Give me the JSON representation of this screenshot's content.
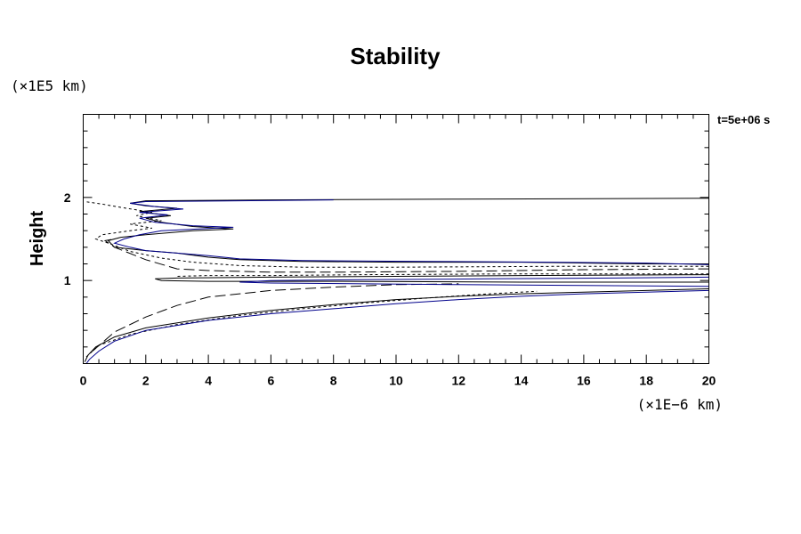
{
  "chart_data": {
    "type": "line",
    "title": "Stability",
    "ylabel": "Height",
    "xlabel": "",
    "x_unit": "(×1E−6 km)",
    "y_unit": "(×1E5 km)",
    "annotation": "t=5e+06 s",
    "xlim": [
      0,
      20
    ],
    "ylim": [
      0,
      3
    ],
    "x_ticks": [
      0,
      2,
      4,
      6,
      8,
      10,
      12,
      14,
      16,
      18,
      20
    ],
    "y_ticks": [
      1,
      2
    ],
    "x_minor_step": 0.5,
    "y_minor_step": 0.2,
    "grid": false,
    "series": [
      {
        "color": "#000000",
        "dash": "solid",
        "points": [
          [
            0.05,
            0.02
          ],
          [
            0.15,
            0.1
          ],
          [
            0.4,
            0.2
          ],
          [
            1,
            0.32
          ],
          [
            2,
            0.43
          ],
          [
            4,
            0.55
          ],
          [
            6,
            0.64
          ],
          [
            8,
            0.71
          ],
          [
            10,
            0.77
          ],
          [
            12,
            0.81
          ],
          [
            14,
            0.84
          ],
          [
            16,
            0.86
          ],
          [
            18,
            0.88
          ],
          [
            20,
            0.9
          ]
        ]
      },
      {
        "color": "#000000",
        "dash": "short",
        "points": [
          [
            0.1,
            0.08
          ],
          [
            0.5,
            0.22
          ],
          [
            1.5,
            0.35
          ],
          [
            3,
            0.47
          ],
          [
            5,
            0.58
          ],
          [
            7,
            0.66
          ],
          [
            9,
            0.73
          ],
          [
            11,
            0.79
          ],
          [
            13,
            0.84
          ],
          [
            14.5,
            0.87
          ]
        ]
      },
      {
        "color": "#000000",
        "dash": "long",
        "points": [
          [
            0.3,
            0.15
          ],
          [
            1,
            0.38
          ],
          [
            2,
            0.56
          ],
          [
            3,
            0.7
          ],
          [
            4,
            0.8
          ],
          [
            6,
            0.88
          ],
          [
            8,
            0.92
          ],
          [
            10,
            0.95
          ],
          [
            12,
            0.96
          ]
        ]
      },
      {
        "color": "#00008b",
        "dash": "solid",
        "points": [
          [
            0.1,
            0
          ],
          [
            0.2,
            0.05
          ],
          [
            0.5,
            0.15
          ],
          [
            1,
            0.27
          ],
          [
            2,
            0.4
          ],
          [
            4,
            0.52
          ],
          [
            6,
            0.6
          ],
          [
            8,
            0.66
          ],
          [
            10,
            0.72
          ],
          [
            12,
            0.77
          ],
          [
            14,
            0.81
          ],
          [
            16,
            0.84
          ],
          [
            18,
            0.86
          ],
          [
            20,
            0.88
          ]
        ]
      },
      {
        "color": "#000000",
        "dash": "solid",
        "points": [
          [
            20,
            0.98
          ],
          [
            14,
            0.98
          ],
          [
            8,
            0.99
          ],
          [
            4,
            0.99
          ],
          [
            2.5,
            1.0
          ],
          [
            2.3,
            1.02
          ],
          [
            3,
            1.03
          ],
          [
            6,
            1.04
          ],
          [
            10,
            1.05
          ],
          [
            14,
            1.06
          ],
          [
            20,
            1.07
          ]
        ]
      },
      {
        "color": "#000000",
        "dash": "short",
        "points": [
          [
            20,
            1.08
          ],
          [
            14,
            1.08
          ],
          [
            9,
            1.07
          ],
          [
            6,
            1.06
          ],
          [
            4,
            1.06
          ],
          [
            3,
            1.05
          ]
        ]
      },
      {
        "color": "#000000",
        "dash": "long",
        "points": [
          [
            20,
            1.14
          ],
          [
            16,
            1.13
          ],
          [
            12,
            1.11
          ],
          [
            8,
            1.1
          ],
          [
            6,
            1.1
          ],
          [
            5,
            1.11
          ],
          [
            4,
            1.12
          ],
          [
            3,
            1.14
          ],
          [
            2,
            1.25
          ],
          [
            1,
            1.4
          ],
          [
            0.7,
            1.48
          ],
          [
            1,
            1.5
          ]
        ]
      },
      {
        "color": "#000000",
        "dash": "short",
        "points": [
          [
            20,
            1.17
          ],
          [
            15,
            1.17
          ],
          [
            10,
            1.16
          ],
          [
            7,
            1.16
          ],
          [
            5,
            1.18
          ],
          [
            3.5,
            1.22
          ],
          [
            2.5,
            1.27
          ],
          [
            1.5,
            1.35
          ],
          [
            0.8,
            1.45
          ],
          [
            0.4,
            1.5
          ],
          [
            0.6,
            1.55
          ],
          [
            1.5,
            1.6
          ],
          [
            2.2,
            1.63
          ],
          [
            1.5,
            1.68
          ],
          [
            2.5,
            1.72
          ],
          [
            1.7,
            1.78
          ],
          [
            2.2,
            1.82
          ],
          [
            1.2,
            1.88
          ],
          [
            0.6,
            1.92
          ],
          [
            0.05,
            1.95
          ]
        ]
      },
      {
        "color": "#000000",
        "dash": "solid",
        "points": [
          [
            20,
            1.2
          ],
          [
            18,
            1.2
          ],
          [
            14,
            1.22
          ],
          [
            10,
            1.22
          ],
          [
            7,
            1.23
          ],
          [
            5,
            1.25
          ],
          [
            4,
            1.28
          ],
          [
            3,
            1.33
          ],
          [
            2,
            1.36
          ],
          [
            1,
            1.4
          ],
          [
            0.8,
            1.48
          ],
          [
            1.2,
            1.52
          ],
          [
            2,
            1.55
          ],
          [
            3.5,
            1.6
          ],
          [
            4.8,
            1.62
          ],
          [
            3.5,
            1.65
          ],
          [
            2.5,
            1.7
          ],
          [
            2,
            1.75
          ],
          [
            2.8,
            1.78
          ],
          [
            1.8,
            1.83
          ],
          [
            3,
            1.87
          ],
          [
            2,
            1.9
          ],
          [
            1.5,
            1.93
          ],
          [
            2,
            1.96
          ],
          [
            6,
            1.97
          ],
          [
            12,
            1.98
          ],
          [
            20,
            1.99
          ]
        ]
      },
      {
        "color": "#00008b",
        "dash": "solid",
        "points": [
          [
            20,
            0.93
          ],
          [
            16,
            0.94
          ],
          [
            12,
            0.95
          ],
          [
            9,
            0.96
          ],
          [
            6,
            0.97
          ],
          [
            5,
            0.98
          ],
          [
            6,
            1.0
          ],
          [
            9,
            1.01
          ],
          [
            13,
            1.02
          ],
          [
            17,
            1.03
          ],
          [
            20,
            1.04
          ]
        ]
      },
      {
        "color": "#00008b",
        "dash": "solid",
        "points": [
          [
            20,
            1.19
          ],
          [
            18,
            1.21
          ],
          [
            15,
            1.22
          ],
          [
            11,
            1.23
          ],
          [
            7,
            1.24
          ],
          [
            5,
            1.26
          ],
          [
            4,
            1.3
          ],
          [
            3,
            1.33
          ],
          [
            2,
            1.36
          ],
          [
            1.5,
            1.4
          ],
          [
            1,
            1.45
          ],
          [
            1.3,
            1.5
          ],
          [
            1.8,
            1.55
          ],
          [
            2.5,
            1.6
          ],
          [
            4.8,
            1.64
          ],
          [
            3.5,
            1.66
          ],
          [
            2.3,
            1.7
          ],
          [
            1.8,
            1.75
          ],
          [
            2.7,
            1.79
          ],
          [
            1.8,
            1.82
          ],
          [
            3.2,
            1.86
          ],
          [
            2.3,
            1.89
          ],
          [
            1.5,
            1.93
          ],
          [
            2,
            1.95
          ],
          [
            5,
            1.96
          ],
          [
            8,
            1.97
          ]
        ]
      }
    ]
  }
}
